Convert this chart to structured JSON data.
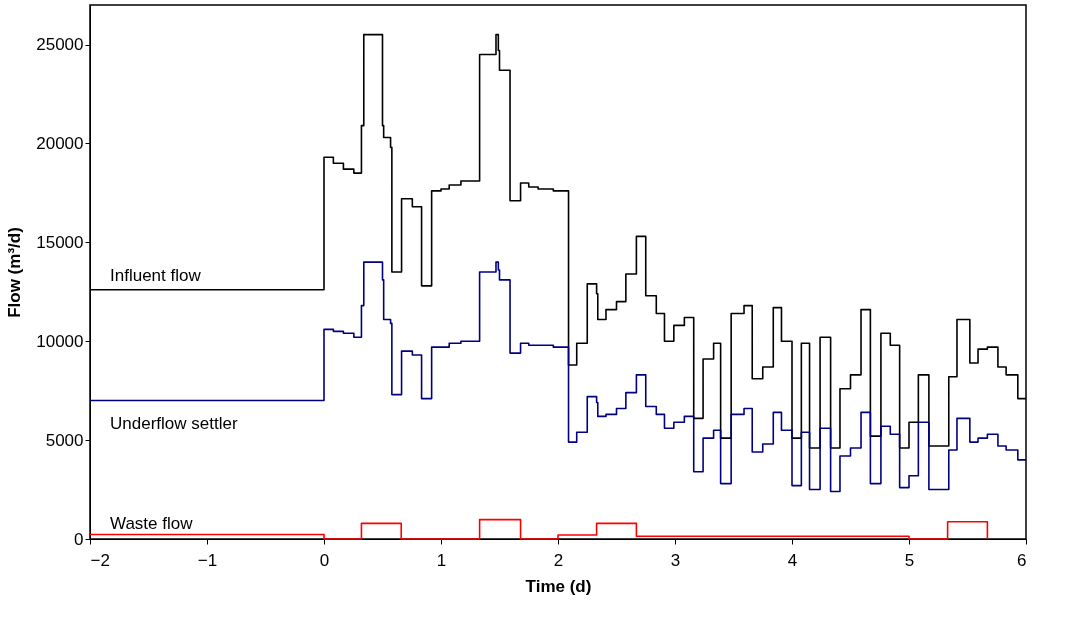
{
  "chart_data": {
    "type": "step",
    "xlabel": "Time (d)",
    "ylabel": "Flow (m³/d)",
    "xlim": [
      -2,
      6
    ],
    "xticks": [
      -2,
      -1,
      0,
      1,
      2,
      3,
      4,
      5,
      6
    ],
    "ylim": [
      0,
      27000
    ],
    "yticks": [
      0,
      5000,
      10000,
      15000,
      20000,
      25000
    ],
    "grid": false,
    "series": [
      {
        "name": "Influent flow",
        "color": "#000000",
        "x": [
          -2,
          0,
          0.08,
          0.166,
          0.255,
          0.32,
          0.34,
          0.5,
          0.51,
          0.569,
          0.58,
          0.663,
          0.755,
          0.834,
          0.92,
          1.0,
          1.07,
          1.17,
          1.33,
          1.47,
          1.49,
          1.5,
          1.59,
          1.68,
          1.75,
          1.83,
          1.96,
          2.09,
          2.16,
          2.25,
          2.33,
          2.34,
          2.41,
          2.5,
          2.58,
          2.67,
          2.75,
          2.84,
          2.91,
          2.99,
          3.08,
          3.16,
          3.24,
          3.33,
          3.39,
          3.48,
          3.59,
          3.66,
          3.75,
          3.84,
          3.91,
          4.0,
          4.08,
          4.15,
          4.24,
          4.33,
          4.41,
          4.5,
          4.59,
          4.67,
          4.76,
          4.84,
          4.92,
          5.0,
          5.08,
          5.17,
          5.34,
          5.41,
          5.52,
          5.59,
          5.67,
          5.76,
          5.83,
          5.93,
          6
        ],
        "values": [
          12600,
          19300,
          19000,
          18700,
          18500,
          20900,
          25500,
          20900,
          20300,
          19800,
          13500,
          17200,
          16800,
          12800,
          17600,
          17700,
          17900,
          18100,
          24500,
          25500,
          24700,
          23700,
          17100,
          18000,
          17800,
          17700,
          17600,
          8800,
          9900,
          12900,
          12400,
          11100,
          11600,
          12000,
          13400,
          15300,
          12300,
          11400,
          10000,
          10800,
          11200,
          6100,
          9100,
          9900,
          5100,
          11400,
          11800,
          8100,
          8700,
          11700,
          10000,
          5100,
          9900,
          4600,
          10200,
          4600,
          7600,
          8300,
          11600,
          5200,
          10400,
          9800,
          4600,
          5900,
          8300,
          4700,
          8200,
          11100,
          8900,
          9600,
          9700,
          8700,
          8300,
          7100,
          7100
        ]
      },
      {
        "name": "Underflow settler",
        "color": "#000080",
        "x": [
          -2,
          0,
          0.08,
          0.166,
          0.255,
          0.32,
          0.34,
          0.5,
          0.51,
          0.569,
          0.58,
          0.663,
          0.755,
          0.834,
          0.92,
          1.0,
          1.07,
          1.17,
          1.33,
          1.47,
          1.49,
          1.5,
          1.59,
          1.68,
          1.75,
          1.83,
          1.96,
          2.09,
          2.16,
          2.25,
          2.33,
          2.34,
          2.41,
          2.5,
          2.58,
          2.67,
          2.75,
          2.84,
          2.91,
          2.99,
          3.08,
          3.16,
          3.24,
          3.33,
          3.39,
          3.48,
          3.59,
          3.66,
          3.75,
          3.84,
          3.91,
          4.0,
          4.08,
          4.15,
          4.24,
          4.33,
          4.41,
          4.5,
          4.59,
          4.67,
          4.76,
          4.84,
          4.92,
          5.0,
          5.08,
          5.17,
          5.34,
          5.41,
          5.52,
          5.59,
          5.67,
          5.76,
          5.83,
          5.93,
          6
        ],
        "values": [
          7000,
          10600,
          10500,
          10400,
          10200,
          11800,
          14000,
          13100,
          11100,
          10900,
          7300,
          9500,
          9300,
          7100,
          9700,
          9700,
          9900,
          10000,
          13500,
          14000,
          13600,
          13100,
          9400,
          9900,
          9800,
          9800,
          9700,
          4900,
          5400,
          7200,
          6900,
          6200,
          6300,
          6600,
          7400,
          8300,
          6700,
          6300,
          5600,
          5900,
          6200,
          3400,
          5100,
          5500,
          2800,
          6300,
          6600,
          4400,
          4800,
          6400,
          5500,
          2700,
          5400,
          2500,
          5600,
          2400,
          4200,
          4600,
          6400,
          2800,
          5700,
          5300,
          2600,
          3200,
          5900,
          2500,
          4500,
          6100,
          4900,
          5100,
          5300,
          4700,
          4500,
          4000,
          4000
        ]
      },
      {
        "name": "Waste flow",
        "color": "#ff0000",
        "x": [
          -2,
          0,
          0.32,
          0.66,
          1.33,
          1.68,
          2.0,
          2.33,
          2.67,
          5.0,
          5.33,
          5.67
        ],
        "values": [
          230,
          0,
          790,
          0,
          980,
          0,
          200,
          790,
          140,
          0,
          870,
          0
        ]
      }
    ]
  }
}
